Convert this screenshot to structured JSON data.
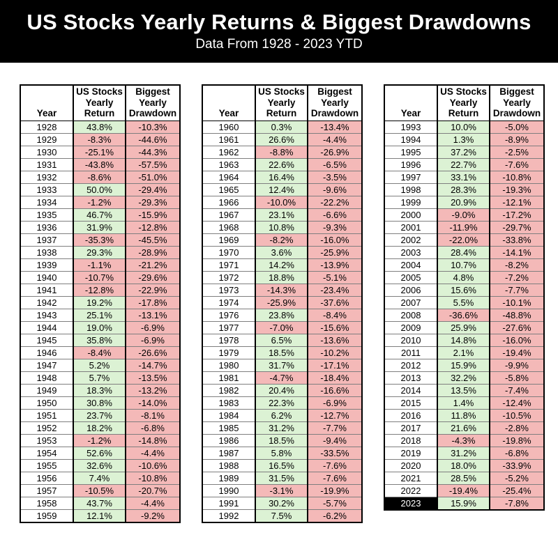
{
  "page": {
    "title": "US Stocks Yearly Returns & Biggest Drawdowns",
    "subtitle": "Data From 1928 - 2023 YTD"
  },
  "colors": {
    "banner_bg": "#000000",
    "positive_bg": "#dcf2d4",
    "negative_bg": "#f4b9b8",
    "highlight_year_bg": "#000000",
    "highlight_year_fg": "#ffffff"
  },
  "chart_data": {
    "type": "table",
    "title": "US Stocks Yearly Returns & Biggest Drawdowns",
    "subtitle": "Data From 1928 - 2023 YTD",
    "columns": [
      "Year",
      "US Stocks\nYearly\nReturn",
      "Biggest\nYearly\nDrawdown"
    ],
    "highlight_years": [
      "2023"
    ],
    "tables": [
      {
        "label": "1928-1959",
        "rows": [
          [
            "1928",
            "43.8%",
            "-10.3%"
          ],
          [
            "1929",
            "-8.3%",
            "-44.6%"
          ],
          [
            "1930",
            "-25.1%",
            "-44.3%"
          ],
          [
            "1931",
            "-43.8%",
            "-57.5%"
          ],
          [
            "1932",
            "-8.6%",
            "-51.0%"
          ],
          [
            "1933",
            "50.0%",
            "-29.4%"
          ],
          [
            "1934",
            "-1.2%",
            "-29.3%"
          ],
          [
            "1935",
            "46.7%",
            "-15.9%"
          ],
          [
            "1936",
            "31.9%",
            "-12.8%"
          ],
          [
            "1937",
            "-35.3%",
            "-45.5%"
          ],
          [
            "1938",
            "29.3%",
            "-28.9%"
          ],
          [
            "1939",
            "-1.1%",
            "-21.2%"
          ],
          [
            "1940",
            "-10.7%",
            "-29.6%"
          ],
          [
            "1941",
            "-12.8%",
            "-22.9%"
          ],
          [
            "1942",
            "19.2%",
            "-17.8%"
          ],
          [
            "1943",
            "25.1%",
            "-13.1%"
          ],
          [
            "1944",
            "19.0%",
            "-6.9%"
          ],
          [
            "1945",
            "35.8%",
            "-6.9%"
          ],
          [
            "1946",
            "-8.4%",
            "-26.6%"
          ],
          [
            "1947",
            "5.2%",
            "-14.7%"
          ],
          [
            "1948",
            "5.7%",
            "-13.5%"
          ],
          [
            "1949",
            "18.3%",
            "-13.2%"
          ],
          [
            "1950",
            "30.8%",
            "-14.0%"
          ],
          [
            "1951",
            "23.7%",
            "-8.1%"
          ],
          [
            "1952",
            "18.2%",
            "-6.8%"
          ],
          [
            "1953",
            "-1.2%",
            "-14.8%"
          ],
          [
            "1954",
            "52.6%",
            "-4.4%"
          ],
          [
            "1955",
            "32.6%",
            "-10.6%"
          ],
          [
            "1956",
            "7.4%",
            "-10.8%"
          ],
          [
            "1957",
            "-10.5%",
            "-20.7%"
          ],
          [
            "1958",
            "43.7%",
            "-4.4%"
          ],
          [
            "1959",
            "12.1%",
            "-9.2%"
          ]
        ]
      },
      {
        "label": "1960-1992",
        "rows": [
          [
            "1960",
            "0.3%",
            "-13.4%"
          ],
          [
            "1961",
            "26.6%",
            "-4.4%"
          ],
          [
            "1962",
            "-8.8%",
            "-26.9%"
          ],
          [
            "1963",
            "22.6%",
            "-6.5%"
          ],
          [
            "1964",
            "16.4%",
            "-3.5%"
          ],
          [
            "1965",
            "12.4%",
            "-9.6%"
          ],
          [
            "1966",
            "-10.0%",
            "-22.2%"
          ],
          [
            "1967",
            "23.1%",
            "-6.6%"
          ],
          [
            "1968",
            "10.8%",
            "-9.3%"
          ],
          [
            "1969",
            "-8.2%",
            "-16.0%"
          ],
          [
            "1970",
            "3.6%",
            "-25.9%"
          ],
          [
            "1971",
            "14.2%",
            "-13.9%"
          ],
          [
            "1972",
            "18.8%",
            "-5.1%"
          ],
          [
            "1973",
            "-14.3%",
            "-23.4%"
          ],
          [
            "1974",
            "-25.9%",
            "-37.6%"
          ],
          [
            "1976",
            "23.8%",
            "-8.4%"
          ],
          [
            "1977",
            "-7.0%",
            "-15.6%"
          ],
          [
            "1978",
            "6.5%",
            "-13.6%"
          ],
          [
            "1979",
            "18.5%",
            "-10.2%"
          ],
          [
            "1980",
            "31.7%",
            "-17.1%"
          ],
          [
            "1981",
            "-4.7%",
            "-18.4%"
          ],
          [
            "1982",
            "20.4%",
            "-16.6%"
          ],
          [
            "1983",
            "22.3%",
            "-6.9%"
          ],
          [
            "1984",
            "6.2%",
            "-12.7%"
          ],
          [
            "1985",
            "31.2%",
            "-7.7%"
          ],
          [
            "1986",
            "18.5%",
            "-9.4%"
          ],
          [
            "1987",
            "5.8%",
            "-33.5%"
          ],
          [
            "1988",
            "16.5%",
            "-7.6%"
          ],
          [
            "1989",
            "31.5%",
            "-7.6%"
          ],
          [
            "1990",
            "-3.1%",
            "-19.9%"
          ],
          [
            "1991",
            "30.2%",
            "-5.7%"
          ],
          [
            "1992",
            "7.5%",
            "-6.2%"
          ]
        ]
      },
      {
        "label": "1993-2023",
        "rows": [
          [
            "1993",
            "10.0%",
            "-5.0%"
          ],
          [
            "1994",
            "1.3%",
            "-8.9%"
          ],
          [
            "1995",
            "37.2%",
            "-2.5%"
          ],
          [
            "1996",
            "22.7%",
            "-7.6%"
          ],
          [
            "1997",
            "33.1%",
            "-10.8%"
          ],
          [
            "1998",
            "28.3%",
            "-19.3%"
          ],
          [
            "1999",
            "20.9%",
            "-12.1%"
          ],
          [
            "2000",
            "-9.0%",
            "-17.2%"
          ],
          [
            "2001",
            "-11.9%",
            "-29.7%"
          ],
          [
            "2002",
            "-22.0%",
            "-33.8%"
          ],
          [
            "2003",
            "28.4%",
            "-14.1%"
          ],
          [
            "2004",
            "10.7%",
            "-8.2%"
          ],
          [
            "2005",
            "4.8%",
            "-7.2%"
          ],
          [
            "2006",
            "15.6%",
            "-7.7%"
          ],
          [
            "2007",
            "5.5%",
            "-10.1%"
          ],
          [
            "2008",
            "-36.6%",
            "-48.8%"
          ],
          [
            "2009",
            "25.9%",
            "-27.6%"
          ],
          [
            "2010",
            "14.8%",
            "-16.0%"
          ],
          [
            "2011",
            "2.1%",
            "-19.4%"
          ],
          [
            "2012",
            "15.9%",
            "-9.9%"
          ],
          [
            "2013",
            "32.2%",
            "-5.8%"
          ],
          [
            "2014",
            "13.5%",
            "-7.4%"
          ],
          [
            "2015",
            "1.4%",
            "-12.4%"
          ],
          [
            "2016",
            "11.8%",
            "-10.5%"
          ],
          [
            "2017",
            "21.6%",
            "-2.8%"
          ],
          [
            "2018",
            "-4.3%",
            "-19.8%"
          ],
          [
            "2019",
            "31.2%",
            "-6.8%"
          ],
          [
            "2020",
            "18.0%",
            "-33.9%"
          ],
          [
            "2021",
            "28.5%",
            "-5.2%"
          ],
          [
            "2022",
            "-19.4%",
            "-25.4%"
          ],
          [
            "2023",
            "15.9%",
            "-7.8%"
          ]
        ]
      }
    ]
  }
}
